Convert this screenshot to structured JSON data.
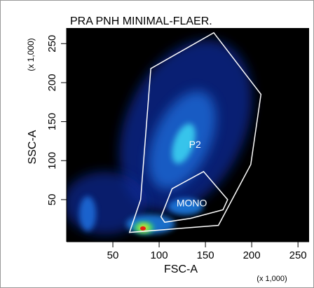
{
  "chart_data": {
    "type": "density",
    "title": "PRA PNH MINIMAL-FLAER.",
    "x_label": "FSC-A",
    "y_label": "SSC-A",
    "x_multiplier": "(x 1,000)",
    "y_multiplier": "(x 1,000)",
    "xlim": [
      0,
      262
    ],
    "ylim": [
      -4,
      270
    ],
    "xticks": [
      50,
      100,
      150,
      200,
      250
    ],
    "yticks": [
      50,
      100,
      150,
      200,
      250
    ],
    "gates": [
      {
        "name": "P2",
        "color": "#ffffff",
        "x": [
          68,
          80,
          91,
          159,
          210,
          199,
          164
        ],
        "y": [
          8,
          50,
          218,
          264,
          185,
          95,
          17
        ]
      },
      {
        "name": "MONO",
        "color": "#ffffff",
        "x": [
          102,
          114,
          148,
          174,
          169,
          134,
          106
        ],
        "y": [
          28,
          64,
          86,
          50,
          37,
          26,
          21
        ]
      }
    ]
  }
}
